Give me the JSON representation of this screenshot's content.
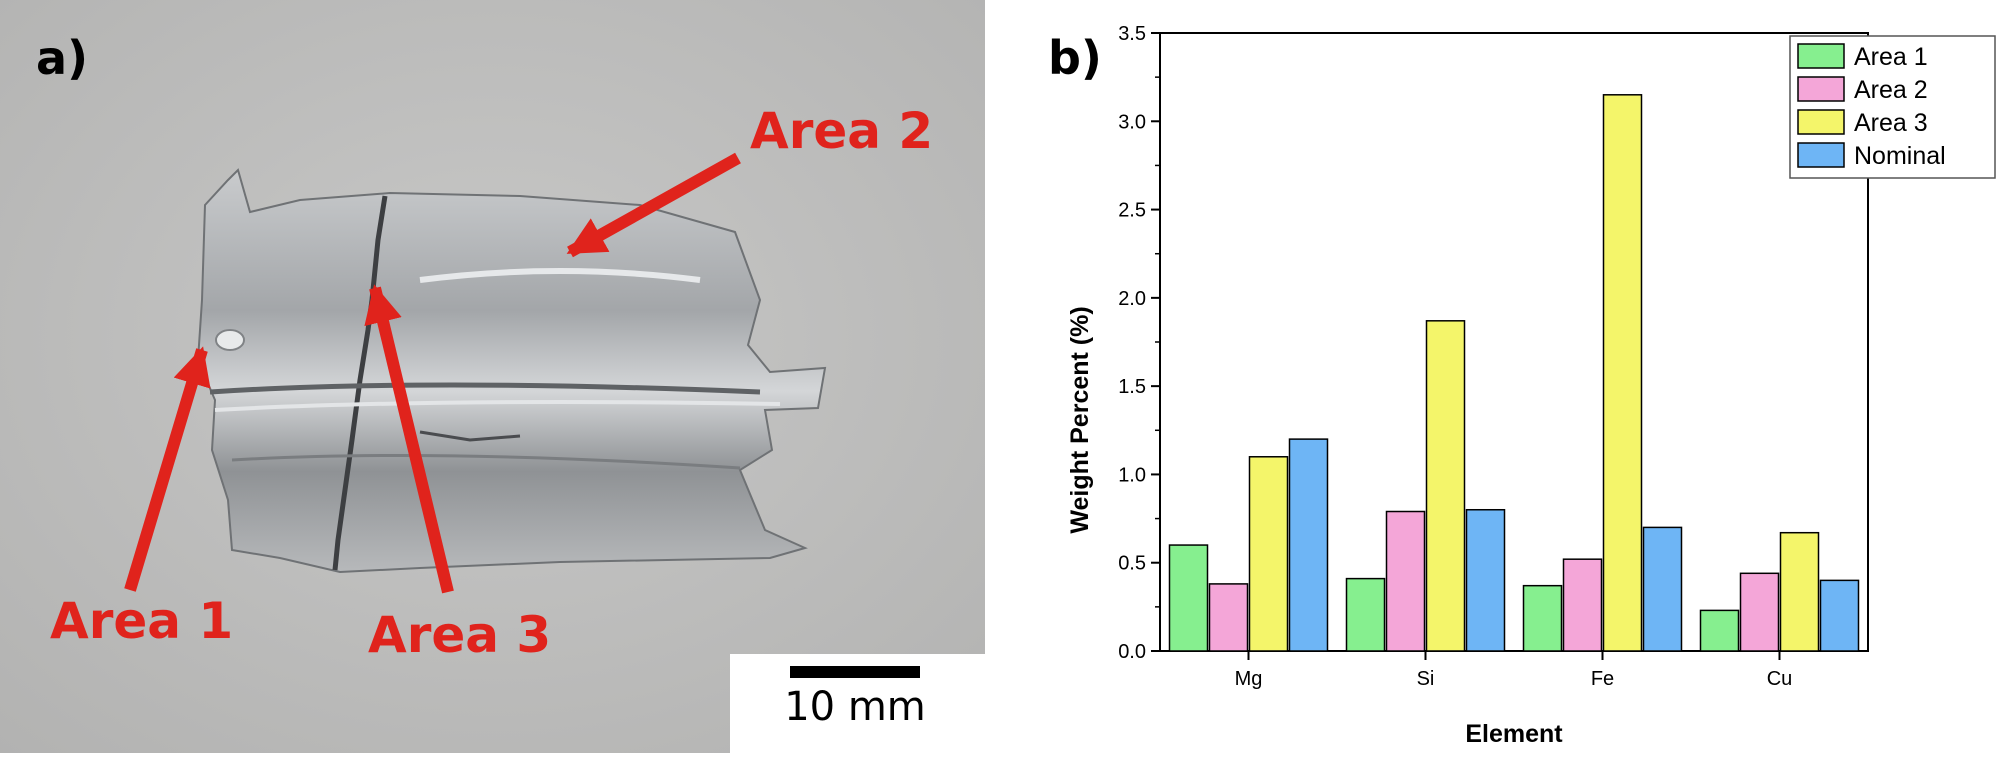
{
  "photo": {
    "panel_label": "a)",
    "annotations": [
      "Area 1",
      "Area 2",
      "Area 3"
    ],
    "scale_bar_label": "10 mm",
    "colors": {
      "background": "#bebebd",
      "sample": "#a9abad",
      "annotation": "#e0231c"
    }
  },
  "chart_data": {
    "type": "bar",
    "panel_label": "b)",
    "categories": [
      "Mg",
      "Si",
      "Fe",
      "Cu"
    ],
    "series": [
      {
        "name": "Area 1",
        "values": [
          0.6,
          0.41,
          0.37,
          0.23
        ],
        "color": "#86ef8f"
      },
      {
        "name": "Area 2",
        "values": [
          0.38,
          0.79,
          0.52,
          0.44
        ],
        "color": "#f4a6d8"
      },
      {
        "name": "Area 3",
        "values": [
          1.1,
          1.87,
          3.15,
          0.67
        ],
        "color": "#f4f56a"
      },
      {
        "name": "Nominal",
        "values": [
          1.2,
          0.8,
          0.7,
          0.4
        ],
        "color": "#6eb5f5"
      }
    ],
    "xlabel": "Element",
    "ylabel": "Weight Percent (%)",
    "ylim": [
      0,
      3.5
    ],
    "yticks": [
      0.0,
      0.5,
      1.0,
      1.5,
      2.0,
      2.5,
      3.0,
      3.5
    ],
    "ytick_labels": [
      "0.0",
      "0.5",
      "1.0",
      "1.5",
      "2.0",
      "2.5",
      "3.0",
      "3.5"
    ],
    "grid": false,
    "legend_position": "top-right"
  }
}
